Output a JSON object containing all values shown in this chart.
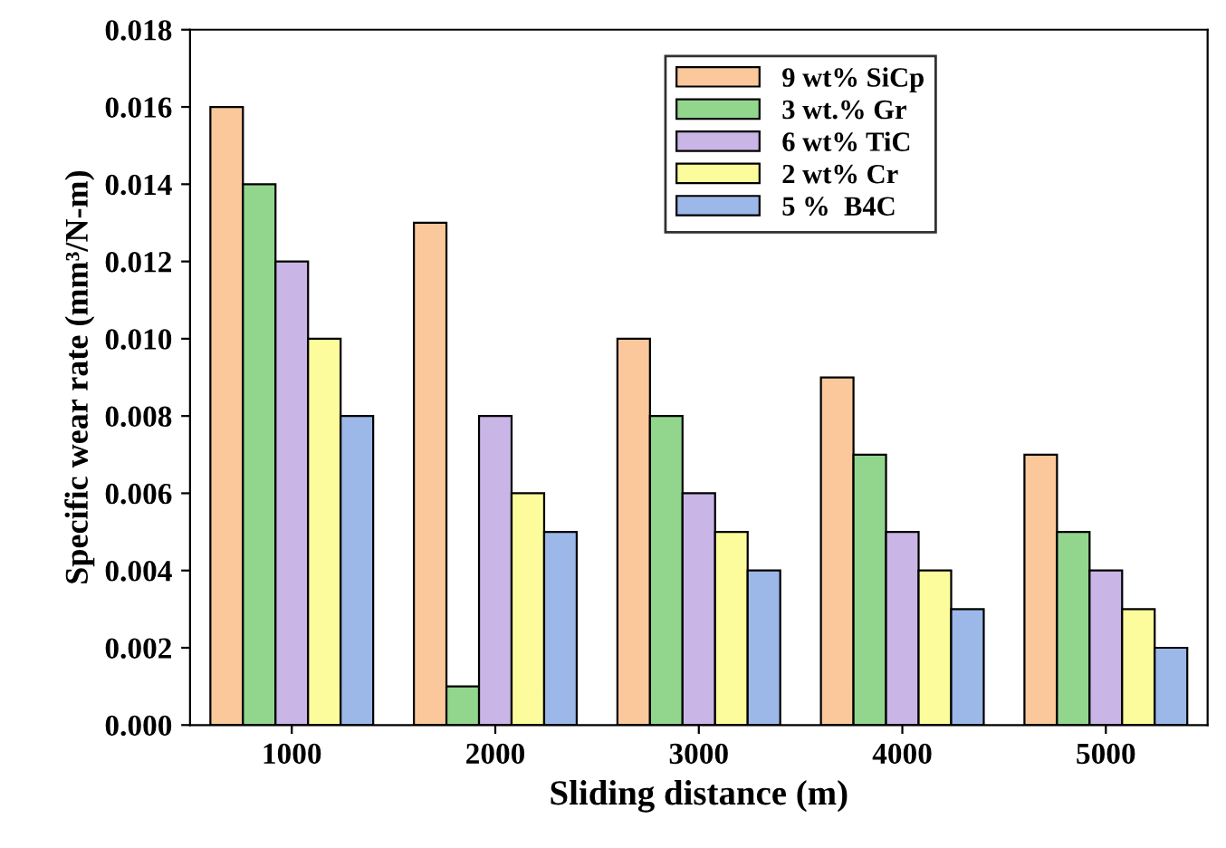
{
  "chart_data": {
    "type": "bar",
    "xlabel": "Sliding distance (m)",
    "ylabel": "Specific wear rate (mm³/N-m)",
    "categories": [
      "1000",
      "2000",
      "3000",
      "4000",
      "5000"
    ],
    "series": [
      {
        "name": "9 wt% SiCp",
        "color": "#fac89a",
        "values": [
          0.016,
          0.013,
          0.01,
          0.009,
          0.007
        ]
      },
      {
        "name": "3 wt.% Gr",
        "color": "#92d68e",
        "values": [
          0.014,
          0.001,
          0.008,
          0.007,
          0.005
        ]
      },
      {
        "name": "6 wt% TiC",
        "color": "#c9b5e6",
        "values": [
          0.012,
          0.008,
          0.006,
          0.005,
          0.004
        ]
      },
      {
        "name": "2 wt% Cr",
        "color": "#fdfc9c",
        "values": [
          0.01,
          0.006,
          0.005,
          0.004,
          0.003
        ]
      },
      {
        "name": "5 %  B4C",
        "color": "#9cb8e8",
        "values": [
          0.008,
          0.005,
          0.004,
          0.003,
          0.002
        ]
      }
    ],
    "ylim": [
      0,
      0.018
    ],
    "yticks": [
      {
        "value": 0,
        "label": "0.000"
      },
      {
        "value": 0.002,
        "label": "0.002"
      },
      {
        "value": 0.004,
        "label": "0.004"
      },
      {
        "value": 0.006,
        "label": "0.006"
      },
      {
        "value": 0.008,
        "label": "0.008"
      },
      {
        "value": 0.01,
        "label": "0.010"
      },
      {
        "value": 0.012,
        "label": "0.012"
      },
      {
        "value": 0.014,
        "label": "0.014"
      },
      {
        "value": 0.016,
        "label": "0.016"
      },
      {
        "value": 0.018,
        "label": "0.018"
      }
    ],
    "legend": "top center",
    "grid": false
  }
}
